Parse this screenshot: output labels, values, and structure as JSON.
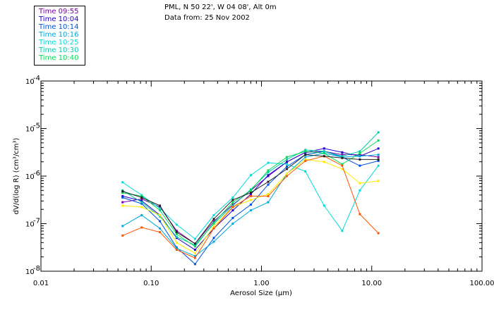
{
  "header": {
    "location": "PML, N 50 22', W 04 08', Alt 0m",
    "date": "Data from: 25 Nov 2002"
  },
  "chart_data": {
    "type": "line",
    "xscale": "log",
    "yscale": "log",
    "xlabel_prefix": "Aerosol Size (",
    "xlabel_unit": "μm",
    "xlabel_suffix": ")",
    "ylabel": "dV/d(log R) (cm³/cm³)",
    "xlim": [
      0.01,
      100
    ],
    "ylim_exponents": [
      -8,
      -4
    ],
    "x_ticks": [
      {
        "value": 0.01,
        "label": "0.01"
      },
      {
        "value": 0.1,
        "label": "0.10"
      },
      {
        "value": 1,
        "label": "1.00"
      },
      {
        "value": 10,
        "label": "10.00"
      },
      {
        "value": 100,
        "label": "100.00"
      }
    ],
    "y_ticks": [
      {
        "exp": -8,
        "base": "10",
        "sup": "-8"
      },
      {
        "exp": -7,
        "base": "10",
        "sup": "-7"
      },
      {
        "exp": -6,
        "base": "10",
        "sup": "-6"
      },
      {
        "exp": -5,
        "base": "10",
        "sup": "-5"
      },
      {
        "exp": -4,
        "base": "10",
        "sup": "-4"
      }
    ],
    "x": [
      0.055,
      0.082,
      0.12,
      0.17,
      0.25,
      0.37,
      0.55,
      0.8,
      1.15,
      1.7,
      2.5,
      3.7,
      5.4,
      7.8,
      11.5
    ],
    "series": [
      {
        "name": "Time 09:55",
        "color": "#7a00a8",
        "log10": [
          -6.55,
          -6.48,
          -6.65,
          -7.15,
          -7.42,
          -6.95,
          -6.6,
          -6.3,
          -6.0,
          -5.7,
          -5.5,
          -5.48,
          -5.55,
          -5.55,
          -5.6
        ]
      },
      {
        "name": "Time 10:04",
        "color": "#2000cc",
        "log10": [
          -6.42,
          -6.52,
          -6.82,
          -7.3,
          -7.55,
          -7.1,
          -6.72,
          -6.38,
          -5.98,
          -5.7,
          -5.5,
          -5.42,
          -5.5,
          -5.58,
          -5.42
        ]
      },
      {
        "name": "Time 10:14",
        "color": "#0050e0",
        "log10": [
          -6.45,
          -6.58,
          -6.95,
          -7.5,
          -7.85,
          -7.3,
          -6.88,
          -6.6,
          -6.18,
          -5.8,
          -5.55,
          -5.48,
          -5.6,
          -5.78,
          -5.68
        ]
      },
      {
        "name": "Time 10:16",
        "color": "#00aadd",
        "log10": [
          -7.05,
          -6.82,
          -7.1,
          -7.52,
          -7.68,
          -7.38,
          -7.0,
          -6.72,
          -6.55,
          -5.95,
          -5.6,
          -5.52,
          -5.6,
          -5.58,
          -5.55
        ]
      },
      {
        "name": "Time 10:25",
        "color": "#00dcdc",
        "log10": [
          -6.13,
          -6.4,
          -6.68,
          -7.02,
          -7.32,
          -6.82,
          -6.45,
          -5.98,
          -5.72,
          -5.75,
          -5.9,
          -6.62,
          -7.15,
          -6.3,
          -5.78
        ]
      },
      {
        "name": "Time 10:30",
        "color": "#00ccaa",
        "log10": [
          -6.3,
          -6.55,
          -6.85,
          -7.28,
          -7.45,
          -7.0,
          -6.62,
          -6.28,
          -5.92,
          -5.65,
          -5.45,
          -5.48,
          -5.58,
          -5.48,
          -5.08
        ]
      },
      {
        "name": "Time 10:40",
        "color": "#00dd55",
        "log10": [
          -6.35,
          -6.42,
          -6.72,
          -7.22,
          -7.48,
          -6.98,
          -6.55,
          -6.3,
          -5.88,
          -5.6,
          -5.48,
          -5.52,
          -5.75,
          -5.52,
          -5.25
        ]
      },
      {
        "name": "",
        "color": "#ffee00",
        "log10": [
          -6.62,
          -6.65,
          -6.82,
          -7.4,
          -7.62,
          -7.05,
          -6.65,
          -6.5,
          -6.38,
          -5.95,
          -5.65,
          -5.7,
          -5.85,
          -6.15,
          -6.1
        ]
      },
      {
        "name": "",
        "color": "#ff5500",
        "log10": [
          -7.25,
          -7.08,
          -7.18,
          -7.55,
          -7.72,
          -7.1,
          -6.65,
          -6.42,
          -6.42,
          -6.0,
          -5.68,
          -5.58,
          -5.78,
          -6.8,
          -7.2
        ]
      },
      {
        "name": "",
        "color": "#222222",
        "log10": [
          -6.32,
          -6.45,
          -6.62,
          -7.18,
          -7.42,
          -6.9,
          -6.5,
          -6.35,
          -6.12,
          -5.85,
          -5.55,
          -5.58,
          -5.62,
          -5.65,
          -5.65
        ]
      }
    ]
  }
}
